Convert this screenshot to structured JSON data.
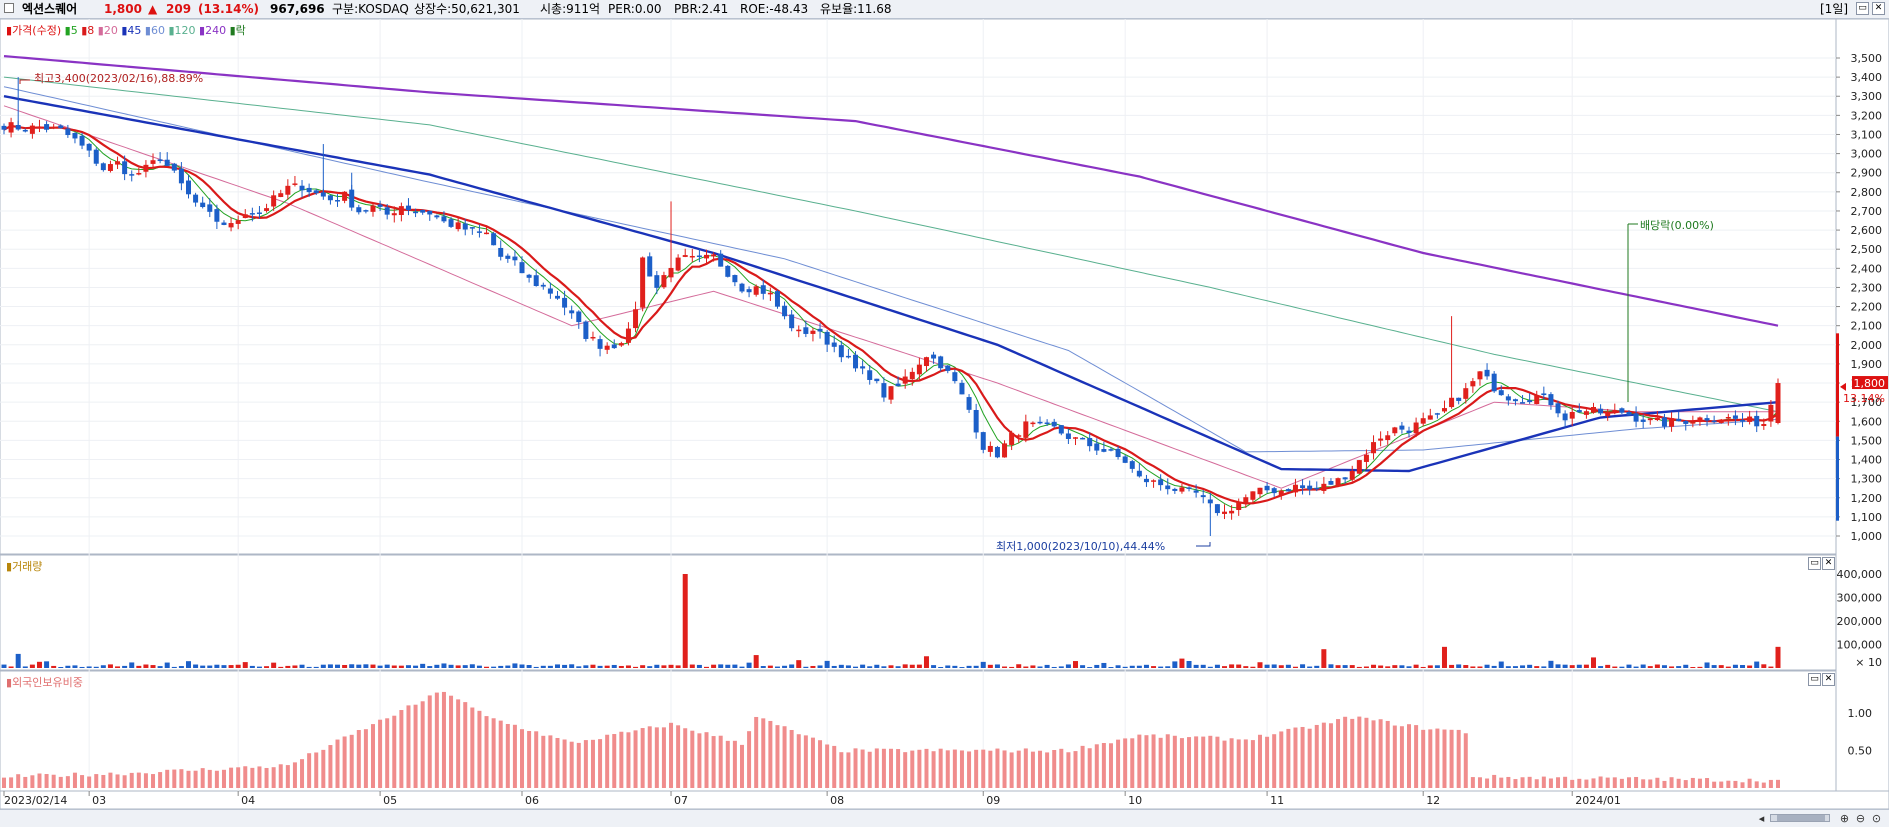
{
  "header": {
    "stock_name": "엑션스퀘어",
    "price": "1,800",
    "change_arrow": "▲",
    "change": "209",
    "change_pct": "(13.14%)",
    "volume": "967,696",
    "market": "구분:KOSDAQ",
    "listed_shares": "상장수:50,621,301",
    "market_cap": "시총:911억",
    "per": "PER:0.00",
    "pbr": "PBR:2.41",
    "roe": "ROE:-48.43",
    "float_ratio": "유보율:11.68",
    "period": "[1일]"
  },
  "legend": {
    "price_label": "가격(수정)",
    "ma_labels": [
      "5",
      "8",
      "20",
      "45",
      "60",
      "120",
      "240"
    ],
    "drop_label": "락"
  },
  "colors": {
    "up": "#e0201c",
    "down": "#1c5fc8",
    "ma5": "#22a322",
    "ma8": "#d91a1a",
    "ma20": "#d46b9a",
    "ma45": "#1a33b8",
    "ma60": "#6f8ed4",
    "ma120": "#59b08f",
    "ma240": "#8a33c4",
    "foreign": "#f08c8c",
    "label_text": "#b8860b"
  },
  "price_pane": {
    "high_annotation": "최고3,400(2023/02/16),88.89%",
    "low_annotation": "최저1,000(2023/10/10),44.44%",
    "dividend_annotation": "배당락(0.00%)",
    "current_price_box": "1,800",
    "current_pct_box": "13.14%",
    "y_ticks": [
      "3,500",
      "3,400",
      "3,300",
      "3,200",
      "3,100",
      "3,000",
      "2,900",
      "2,800",
      "2,700",
      "2,600",
      "2,500",
      "2,400",
      "2,300",
      "2,200",
      "2,100",
      "2,000",
      "1,900",
      "1,800",
      "1,700",
      "1,600",
      "1,500",
      "1,400",
      "1,300",
      "1,200",
      "1,100",
      "1,000"
    ]
  },
  "volume_pane": {
    "title": "거래량",
    "y_ticks": [
      "400,000",
      "300,000",
      "200,000",
      "100,000"
    ],
    "unit": "× 10"
  },
  "foreign_pane": {
    "title": "외국인보유비중",
    "y_ticks": [
      "1.00",
      "0.50"
    ]
  },
  "x_axis": {
    "labels": [
      "2023/02/14",
      "03",
      "04",
      "05",
      "06",
      "07",
      "08",
      "09",
      "10",
      "11",
      "12",
      "2024/01"
    ]
  },
  "chart_data": {
    "type": "candlestick",
    "x_range": [
      "2023/02/14",
      "2024/01/22"
    ],
    "price_range": [
      900,
      3600
    ],
    "close_path": [
      [
        0,
        3150
      ],
      [
        3,
        3130
      ],
      [
        5,
        3140
      ],
      [
        8,
        3120
      ],
      [
        10,
        3070
      ],
      [
        12,
        3000
      ],
      [
        14,
        2920
      ],
      [
        16,
        2950
      ],
      [
        18,
        2880
      ],
      [
        20,
        2920
      ],
      [
        22,
        2980
      ],
      [
        24,
        2890
      ],
      [
        26,
        2780
      ],
      [
        28,
        2700
      ],
      [
        30,
        2650
      ],
      [
        32,
        2620
      ],
      [
        34,
        2700
      ],
      [
        36,
        2690
      ],
      [
        38,
        2760
      ],
      [
        40,
        2820
      ],
      [
        42,
        2830
      ],
      [
        44,
        2790
      ],
      [
        46,
        2760
      ],
      [
        48,
        2780
      ],
      [
        50,
        2700
      ],
      [
        52,
        2720
      ],
      [
        54,
        2680
      ],
      [
        56,
        2730
      ],
      [
        58,
        2700
      ],
      [
        60,
        2690
      ],
      [
        62,
        2640
      ],
      [
        64,
        2620
      ],
      [
        66,
        2590
      ],
      [
        68,
        2580
      ],
      [
        70,
        2460
      ],
      [
        72,
        2420
      ],
      [
        74,
        2340
      ],
      [
        76,
        2300
      ],
      [
        78,
        2250
      ],
      [
        80,
        2150
      ],
      [
        82,
        2050
      ],
      [
        84,
        2000
      ],
      [
        86,
        2000
      ],
      [
        88,
        2060
      ],
      [
        89,
        2200
      ],
      [
        90,
        2450
      ],
      [
        92,
        2300
      ],
      [
        94,
        2420
      ],
      [
        96,
        2450
      ],
      [
        98,
        2440
      ],
      [
        100,
        2460
      ],
      [
        102,
        2380
      ],
      [
        104,
        2300
      ],
      [
        106,
        2300
      ],
      [
        108,
        2260
      ],
      [
        110,
        2140
      ],
      [
        112,
        2060
      ],
      [
        114,
        2080
      ],
      [
        116,
        2020
      ],
      [
        118,
        1960
      ],
      [
        120,
        1870
      ],
      [
        122,
        1840
      ],
      [
        124,
        1740
      ],
      [
        126,
        1780
      ],
      [
        128,
        1870
      ],
      [
        130,
        1950
      ],
      [
        132,
        1900
      ],
      [
        134,
        1800
      ],
      [
        136,
        1660
      ],
      [
        138,
        1470
      ],
      [
        140,
        1430
      ],
      [
        142,
        1520
      ],
      [
        144,
        1580
      ],
      [
        146,
        1570
      ],
      [
        148,
        1560
      ],
      [
        150,
        1520
      ],
      [
        152,
        1490
      ],
      [
        154,
        1460
      ],
      [
        156,
        1430
      ],
      [
        158,
        1390
      ],
      [
        160,
        1300
      ],
      [
        162,
        1280
      ],
      [
        164,
        1260
      ],
      [
        166,
        1230
      ],
      [
        168,
        1220
      ],
      [
        170,
        1150
      ],
      [
        172,
        1120
      ],
      [
        174,
        1180
      ],
      [
        176,
        1220
      ],
      [
        178,
        1240
      ],
      [
        180,
        1240
      ],
      [
        182,
        1260
      ],
      [
        184,
        1240
      ],
      [
        186,
        1260
      ],
      [
        188,
        1290
      ],
      [
        190,
        1350
      ],
      [
        192,
        1440
      ],
      [
        194,
        1520
      ],
      [
        196,
        1560
      ],
      [
        198,
        1560
      ],
      [
        200,
        1600
      ],
      [
        202,
        1620
      ],
      [
        204,
        1700
      ],
      [
        206,
        1760
      ],
      [
        208,
        1850
      ],
      [
        210,
        1780
      ],
      [
        212,
        1730
      ],
      [
        214,
        1720
      ],
      [
        216,
        1730
      ],
      [
        218,
        1700
      ],
      [
        220,
        1620
      ],
      [
        222,
        1660
      ],
      [
        224,
        1650
      ],
      [
        226,
        1640
      ],
      [
        228,
        1650
      ],
      [
        230,
        1620
      ],
      [
        232,
        1600
      ],
      [
        234,
        1590
      ],
      [
        236,
        1600
      ],
      [
        238,
        1610
      ],
      [
        240,
        1620
      ],
      [
        242,
        1620
      ],
      [
        244,
        1610
      ],
      [
        246,
        1600
      ],
      [
        248,
        1590
      ],
      [
        250,
        1800
      ]
    ],
    "moving_averages": {
      "ma240": [
        [
          0,
          3510
        ],
        [
          60,
          3320
        ],
        [
          120,
          3170
        ],
        [
          160,
          2880
        ],
        [
          200,
          2480
        ],
        [
          250,
          2100
        ]
      ],
      "ma120": [
        [
          0,
          3400
        ],
        [
          60,
          3150
        ],
        [
          120,
          2700
        ],
        [
          170,
          2300
        ],
        [
          210,
          1950
        ],
        [
          250,
          1650
        ]
      ],
      "ma60": [
        [
          0,
          3350
        ],
        [
          60,
          2850
        ],
        [
          110,
          2450
        ],
        [
          150,
          1970
        ],
        [
          175,
          1440
        ],
        [
          200,
          1450
        ],
        [
          230,
          1560
        ],
        [
          250,
          1610
        ]
      ],
      "ma45": [
        [
          0,
          3300
        ],
        [
          60,
          2890
        ],
        [
          100,
          2480
        ],
        [
          140,
          2000
        ],
        [
          180,
          1350
        ],
        [
          198,
          1340
        ],
        [
          225,
          1620
        ],
        [
          250,
          1700
        ]
      ],
      "ma20": [
        [
          0,
          3250
        ],
        [
          40,
          2740
        ],
        [
          80,
          2100
        ],
        [
          100,
          2280
        ],
        [
          140,
          1800
        ],
        [
          180,
          1250
        ],
        [
          210,
          1700
        ],
        [
          230,
          1650
        ],
        [
          250,
          1650
        ]
      ]
    },
    "volume_spikes": [
      [
        2,
        60000
      ],
      [
        96,
        400000
      ],
      [
        106,
        55000
      ],
      [
        130,
        50000
      ],
      [
        166,
        40000
      ],
      [
        186,
        80000
      ],
      [
        203,
        90000
      ],
      [
        224,
        45000
      ],
      [
        250,
        90000
      ]
    ],
    "foreign_ratio_profile": [
      [
        0,
        0.15
      ],
      [
        18,
        0.2
      ],
      [
        40,
        0.3
      ],
      [
        62,
        1.3
      ],
      [
        68,
        0.95
      ],
      [
        80,
        0.6
      ],
      [
        94,
        0.85
      ],
      [
        104,
        0.6
      ],
      [
        106,
        0.95
      ],
      [
        118,
        0.5
      ],
      [
        150,
        0.5
      ],
      [
        160,
        0.7
      ],
      [
        175,
        0.65
      ],
      [
        186,
        0.85
      ],
      [
        190,
        0.95
      ],
      [
        200,
        0.8
      ],
      [
        206,
        0.75
      ],
      [
        207,
        0.15
      ],
      [
        250,
        0.1
      ]
    ]
  }
}
